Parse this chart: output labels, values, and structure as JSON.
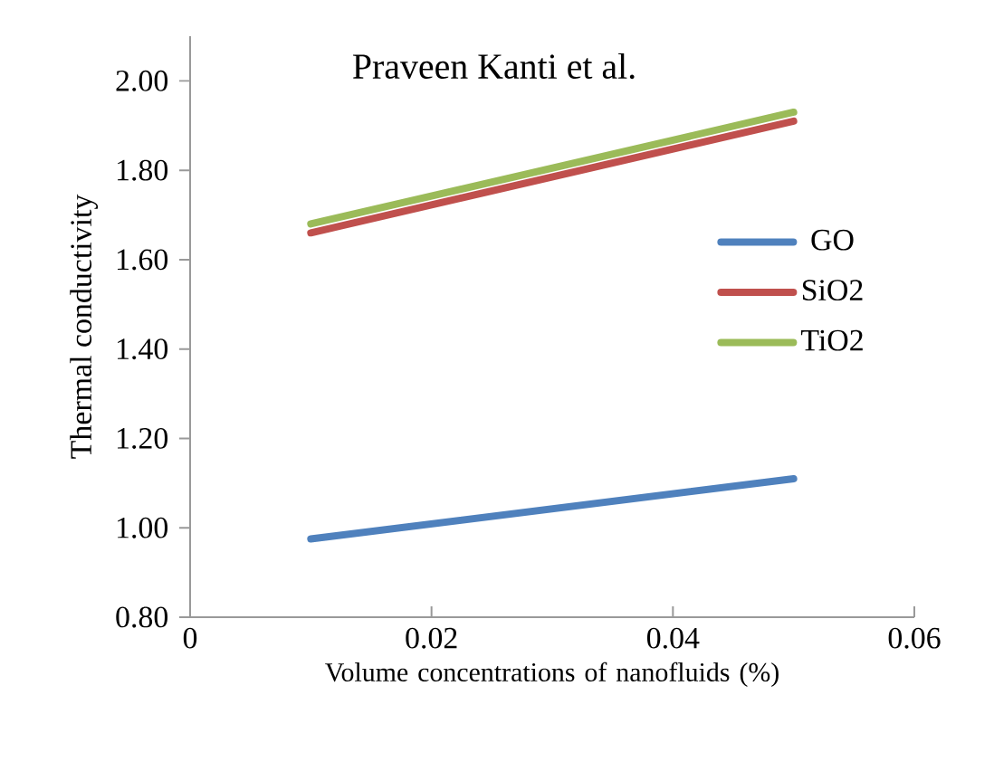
{
  "chart_data": {
    "type": "line",
    "title": "Praveen Kanti et al.",
    "xlabel": "Volume concentrations of nanofluids (%)",
    "ylabel": "Thermal conductivity",
    "x": [
      0.01,
      0.05
    ],
    "series": [
      {
        "name": "GO",
        "color": "#4f81bd",
        "values": [
          0.975,
          1.11
        ]
      },
      {
        "name": "SiO2",
        "color": "#c0504d",
        "values": [
          1.66,
          1.91
        ]
      },
      {
        "name": "TiO2",
        "color": "#9bbb59",
        "values": [
          1.68,
          1.93
        ]
      }
    ],
    "xlim": [
      0,
      0.06
    ],
    "xticks": [
      0,
      0.02,
      0.04,
      0.06
    ],
    "ylim": [
      0.8,
      2.1
    ],
    "yticks": [
      {
        "value": 0.8,
        "label": "0.80"
      },
      {
        "value": 1.0,
        "label": "1.00"
      },
      {
        "value": 1.2,
        "label": "1.20"
      },
      {
        "value": 1.4,
        "label": "1.40"
      },
      {
        "value": 1.6,
        "label": "1.60"
      },
      {
        "value": 1.8,
        "label": "1.80"
      },
      {
        "value": 2.0,
        "label": "2.00"
      }
    ],
    "grid": false,
    "legend": "right",
    "marker": "none",
    "line_style": "solid"
  }
}
